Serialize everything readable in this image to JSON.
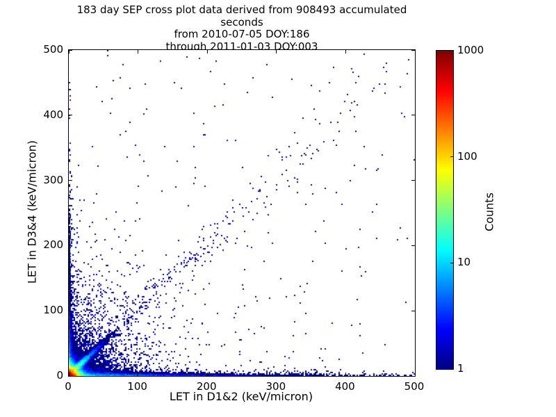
{
  "chart_data": {
    "type": "heatmap",
    "title_lines": [
      "183 day SEP cross plot data derived from 908493 accumulated seconds",
      "from 2010-07-05 DOY:186",
      "through 2011-01-03 DOY:003"
    ],
    "xlabel": "LET in D1&2 (keV/micron)",
    "ylabel": "LET in D3&4 (keV/micron)",
    "xlim": [
      0,
      500
    ],
    "ylim": [
      0,
      500
    ],
    "x_ticks": [
      0,
      100,
      200,
      300,
      400,
      500
    ],
    "y_ticks": [
      0,
      100,
      200,
      300,
      400,
      500
    ],
    "grid": false,
    "bin_size": 2,
    "seed": 42,
    "point_color_min": "#000080",
    "colorbar": {
      "label": "Counts",
      "scale": "log",
      "range": [
        1,
        1000
      ],
      "ticks": [
        1,
        10,
        100,
        1000
      ],
      "inner_ticks": [
        10,
        100
      ],
      "colormap": "jet",
      "gradient_stops": [
        {
          "pos": 0,
          "color": "#000080"
        },
        {
          "pos": 12.5,
          "color": "#0000FF"
        },
        {
          "pos": 37.5,
          "color": "#00FFFF"
        },
        {
          "pos": 50,
          "color": "#80FF80"
        },
        {
          "pos": 62.5,
          "color": "#FFFF00"
        },
        {
          "pos": 87.5,
          "color": "#FF0000"
        },
        {
          "pos": 100,
          "color": "#800000"
        }
      ]
    },
    "density_components": [
      {
        "kind": "corner_blob",
        "amplitude": 1800,
        "sx": 5,
        "sy": 4.5
      },
      {
        "kind": "diagonal_ridge_strong",
        "amplitude": 100,
        "length_scale": 16,
        "sigma": 2.2
      },
      {
        "kind": "diagonal_ridge_sparse",
        "amplitude": 0.45,
        "length_scale": 160,
        "sigma_base": 2.5,
        "sigma_growth": 0.03
      },
      {
        "kind": "bottom_band",
        "amplitude": 14,
        "x_scale": 150,
        "y_scale": 2.5
      },
      {
        "kind": "left_band",
        "amplitude": 12,
        "x_scale": 2.5,
        "y_scale": 90
      },
      {
        "kind": "origin_wedge",
        "amplitude": 3.5,
        "scale": 45
      },
      {
        "kind": "background",
        "amplitude": 0.012,
        "scale": 300,
        "floor": 0.0015
      }
    ]
  }
}
